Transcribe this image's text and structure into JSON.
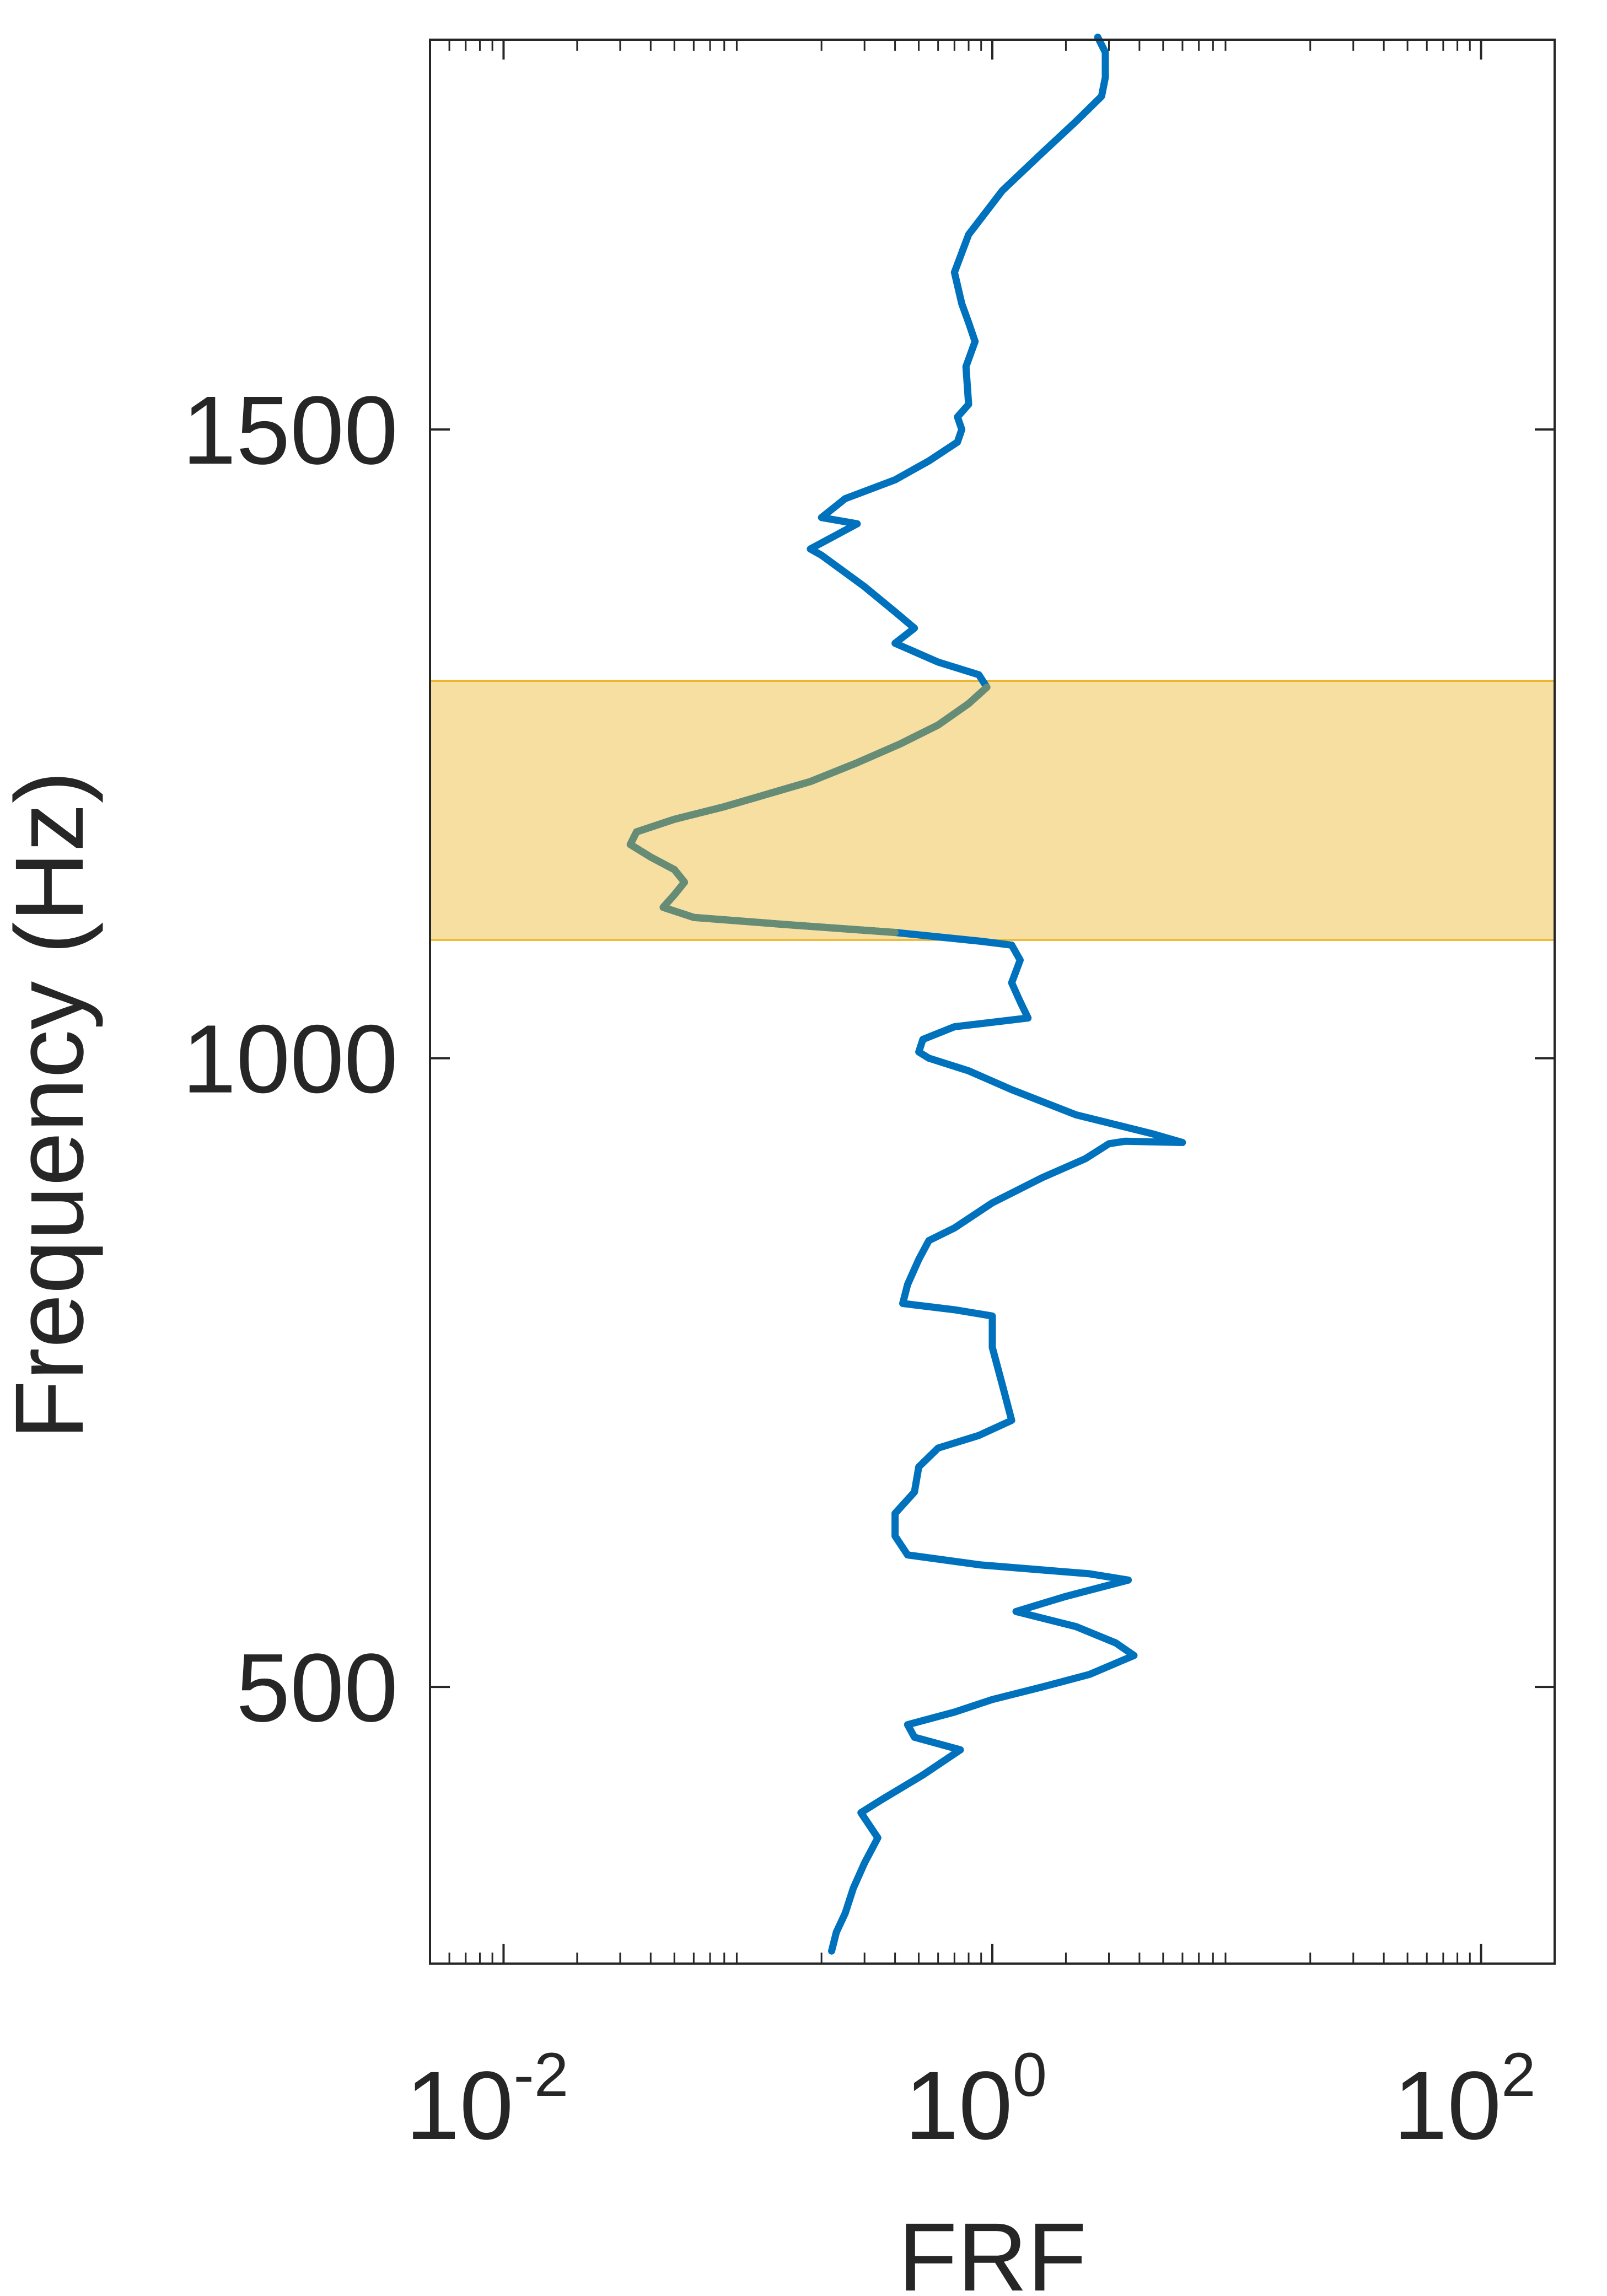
{
  "chart_data": {
    "type": "line",
    "title": "",
    "xlabel": "FRF",
    "ylabel": "Frequency (Hz)",
    "x_scale": "log",
    "xlim": [
      0.005,
      200
    ],
    "ylim": [
      280,
      1810
    ],
    "grid": false,
    "x_tick_labels": [
      {
        "value": 0.01,
        "base": "10",
        "exp": "-2"
      },
      {
        "value": 1,
        "base": "10",
        "exp": "0"
      },
      {
        "value": 100,
        "base": "10",
        "exp": "2"
      }
    ],
    "y_ticks": [
      500,
      1000,
      1500
    ],
    "y_tick_labels": [
      "500",
      "1000",
      "1500"
    ],
    "highlight_band": {
      "y_range": [
        1094,
        1300
      ],
      "color": "#EDB120",
      "opacity": 0.42
    },
    "series": [
      {
        "color": "#0072BD",
        "points": [
          [
            0.22,
            290
          ],
          [
            0.23,
            305
          ],
          [
            0.25,
            320
          ],
          [
            0.27,
            340
          ],
          [
            0.3,
            360
          ],
          [
            0.34,
            380
          ],
          [
            0.29,
            400
          ],
          [
            0.35,
            410
          ],
          [
            0.52,
            430
          ],
          [
            0.74,
            450
          ],
          [
            0.48,
            460
          ],
          [
            0.45,
            470
          ],
          [
            0.7,
            480
          ],
          [
            1.0,
            490
          ],
          [
            1.6,
            500
          ],
          [
            2.5,
            510
          ],
          [
            3.8,
            525
          ],
          [
            3.2,
            535
          ],
          [
            2.2,
            548
          ],
          [
            1.25,
            560
          ],
          [
            2.0,
            572
          ],
          [
            3.6,
            585
          ],
          [
            2.5,
            590
          ],
          [
            0.9,
            597
          ],
          [
            0.45,
            605
          ],
          [
            0.4,
            620
          ],
          [
            0.4,
            638
          ],
          [
            0.48,
            655
          ],
          [
            0.5,
            675
          ],
          [
            0.6,
            690
          ],
          [
            0.88,
            700
          ],
          [
            1.2,
            712
          ],
          [
            1.1,
            740
          ],
          [
            1.0,
            770
          ],
          [
            1.0,
            795
          ],
          [
            0.7,
            800
          ],
          [
            0.43,
            805
          ],
          [
            0.45,
            820
          ],
          [
            0.5,
            840
          ],
          [
            0.55,
            855
          ],
          [
            0.7,
            865
          ],
          [
            1.0,
            885
          ],
          [
            1.6,
            905
          ],
          [
            2.4,
            920
          ],
          [
            3.0,
            932
          ],
          [
            3.5,
            934
          ],
          [
            6.0,
            933
          ],
          [
            4.5,
            940
          ],
          [
            2.2,
            955
          ],
          [
            1.2,
            975
          ],
          [
            0.8,
            990
          ],
          [
            0.55,
            1000
          ],
          [
            0.5,
            1005
          ],
          [
            0.52,
            1015
          ],
          [
            0.7,
            1025
          ],
          [
            1.4,
            1032
          ],
          [
            1.3,
            1045
          ],
          [
            1.2,
            1060
          ],
          [
            1.3,
            1078
          ],
          [
            1.2,
            1090
          ],
          [
            0.9,
            1093
          ],
          [
            0.4,
            1100
          ],
          [
            0.15,
            1106
          ],
          [
            0.06,
            1112
          ],
          [
            0.045,
            1120
          ],
          [
            0.05,
            1130
          ],
          [
            0.055,
            1140
          ],
          [
            0.05,
            1150
          ],
          [
            0.04,
            1160
          ],
          [
            0.033,
            1170
          ],
          [
            0.035,
            1180
          ],
          [
            0.05,
            1190
          ],
          [
            0.08,
            1200
          ],
          [
            0.12,
            1210
          ],
          [
            0.18,
            1220
          ],
          [
            0.28,
            1235
          ],
          [
            0.42,
            1250
          ],
          [
            0.6,
            1265
          ],
          [
            0.8,
            1282
          ],
          [
            0.95,
            1295
          ],
          [
            0.88,
            1305
          ],
          [
            0.6,
            1315
          ],
          [
            0.4,
            1330
          ],
          [
            0.48,
            1342
          ],
          [
            0.4,
            1355
          ],
          [
            0.3,
            1375
          ],
          [
            0.2,
            1400
          ],
          [
            0.18,
            1405
          ],
          [
            0.28,
            1425
          ],
          [
            0.2,
            1430
          ],
          [
            0.25,
            1445
          ],
          [
            0.4,
            1460
          ],
          [
            0.55,
            1475
          ],
          [
            0.72,
            1490
          ],
          [
            0.75,
            1500
          ],
          [
            0.72,
            1510
          ],
          [
            0.8,
            1520
          ],
          [
            0.78,
            1550
          ],
          [
            0.85,
            1570
          ],
          [
            0.8,
            1585
          ],
          [
            0.75,
            1600
          ],
          [
            0.7,
            1625
          ],
          [
            0.8,
            1655
          ],
          [
            1.1,
            1690
          ],
          [
            1.6,
            1720
          ],
          [
            2.2,
            1745
          ],
          [
            2.8,
            1765
          ],
          [
            2.9,
            1780
          ],
          [
            2.9,
            1800
          ],
          [
            2.7,
            1812
          ]
        ]
      }
    ]
  }
}
